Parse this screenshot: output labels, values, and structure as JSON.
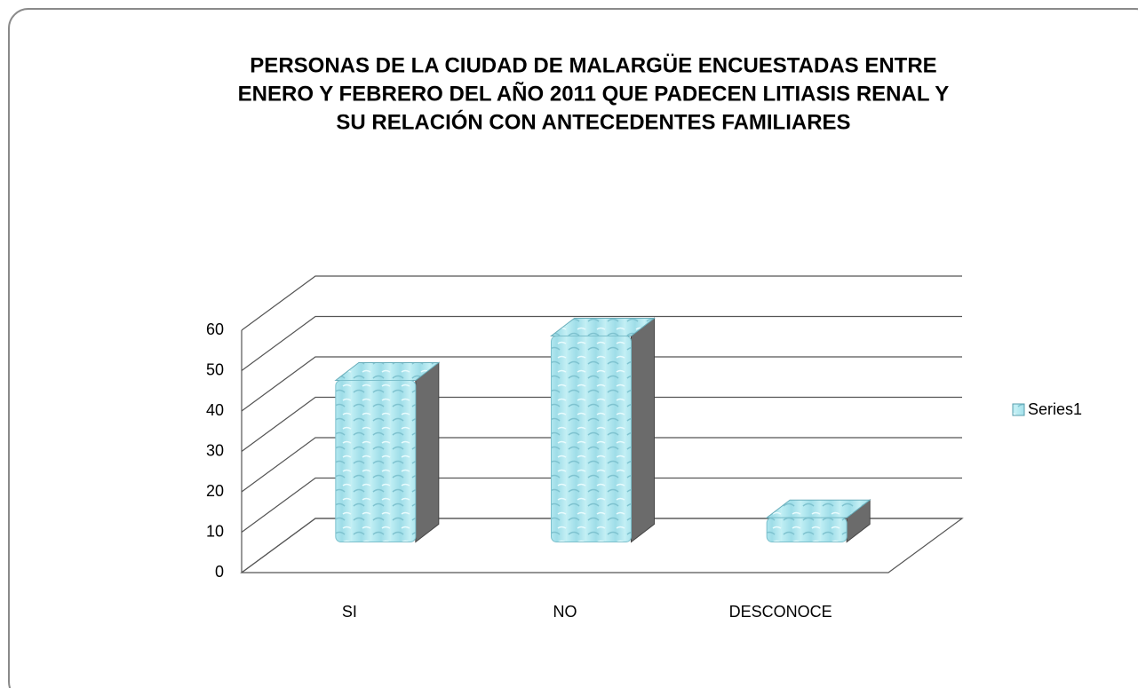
{
  "chart_data": {
    "type": "bar3d",
    "title": [
      "PERSONAS DE LA CIUDAD DE MALARGÜE ENCUESTADAS ENTRE",
      "ENERO Y FEBRERO DEL AÑO 2011 QUE PADECEN LITIASIS RENAL Y",
      "SU RELACIÓN CON ANTECEDENTES FAMILIARES"
    ],
    "categories": [
      "SI",
      "NO",
      "DESCONOCE"
    ],
    "series": [
      {
        "name": "Series1",
        "color": "#a9e3ec",
        "values": [
          40,
          51,
          6
        ]
      }
    ],
    "ylim": [
      0,
      60
    ],
    "yticks": [
      0,
      10,
      20,
      30,
      40,
      50,
      60
    ],
    "grid": true,
    "legend": "right"
  }
}
